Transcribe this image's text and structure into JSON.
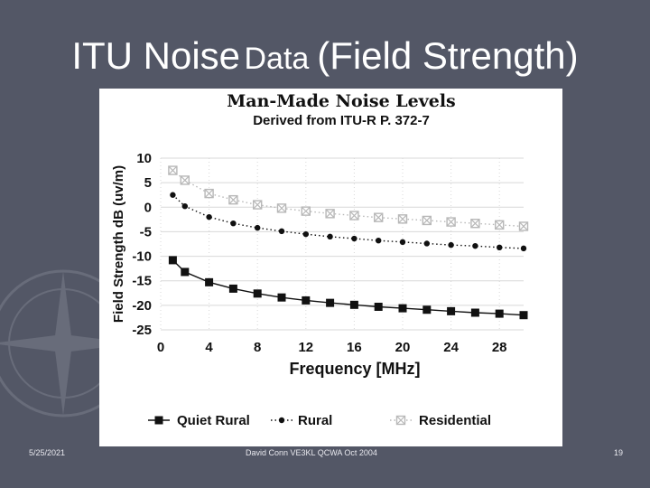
{
  "slide": {
    "title_part1": "ITU Noise",
    "title_part2": "Data",
    "title_part3": "(Field Strength)",
    "footer_date": "5/25/2021",
    "footer_center": "David Conn VE3KL QCWA Oct 2004",
    "footer_page": "19"
  },
  "colors": {
    "background": "#535766",
    "quiet_rural": "#111111",
    "rural": "#111111",
    "residential": "#b8b8b8",
    "grid": "#d8d8d8"
  },
  "chart_data": {
    "type": "line",
    "title": "Man-Made Noise Levels",
    "subtitle": "Derived from ITU-R P. 372-7",
    "xlabel": "Frequency [MHz]",
    "ylabel": "Field Strength dB (uv/m)",
    "xlim": [
      0,
      30
    ],
    "ylim": [
      -25,
      10
    ],
    "xticks": [
      "0",
      "4",
      "8",
      "12",
      "16",
      "20",
      "24",
      "28"
    ],
    "yticks": [
      "10",
      "5",
      "0",
      "-5",
      "-10",
      "-15",
      "-20",
      "-25"
    ],
    "grid": true,
    "legend_position": "bottom",
    "series": [
      {
        "name": "Quiet Rural",
        "marker": "square",
        "x": [
          1,
          2,
          4,
          6,
          8,
          10,
          12,
          14,
          16,
          18,
          20,
          22,
          24,
          26,
          28,
          30
        ],
        "y": [
          -10.8,
          -13.2,
          -15.3,
          -16.6,
          -17.6,
          -18.4,
          -19.0,
          -19.5,
          -19.9,
          -20.3,
          -20.6,
          -20.9,
          -21.2,
          -21.5,
          -21.7,
          -22.0
        ]
      },
      {
        "name": "Rural",
        "marker": "dot",
        "x": [
          1,
          2,
          4,
          6,
          8,
          10,
          12,
          14,
          16,
          18,
          20,
          22,
          24,
          26,
          28,
          30
        ],
        "y": [
          2.5,
          0.2,
          -2.0,
          -3.3,
          -4.2,
          -4.9,
          -5.5,
          -6.0,
          -6.4,
          -6.8,
          -7.1,
          -7.4,
          -7.7,
          -7.9,
          -8.2,
          -8.4
        ]
      },
      {
        "name": "Residential",
        "marker": "crossed-square",
        "x": [
          1,
          2,
          4,
          6,
          8,
          10,
          12,
          14,
          16,
          18,
          20,
          22,
          24,
          26,
          28,
          30
        ],
        "y": [
          7.5,
          5.5,
          2.8,
          1.5,
          0.5,
          -0.2,
          -0.8,
          -1.3,
          -1.7,
          -2.1,
          -2.4,
          -2.7,
          -3.0,
          -3.3,
          -3.6,
          -3.9
        ]
      }
    ]
  }
}
